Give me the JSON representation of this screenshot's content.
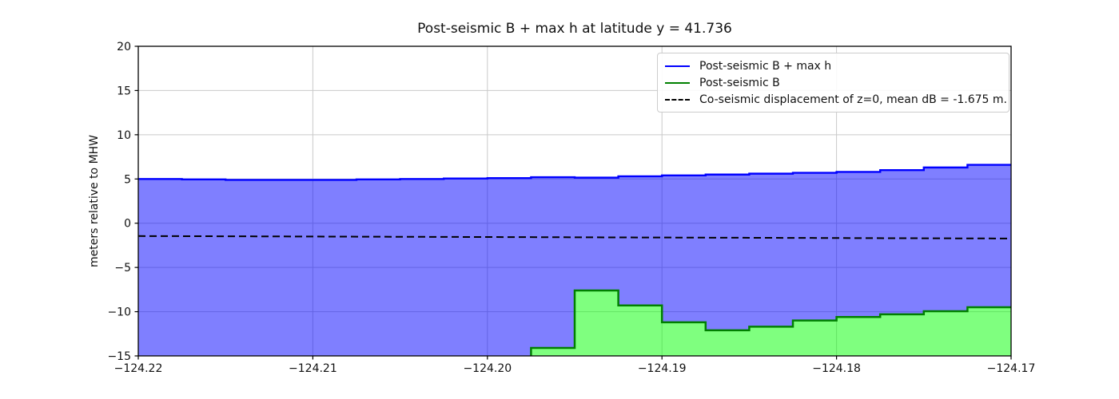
{
  "figure": {
    "background": "#ffffff"
  },
  "chart_data": {
    "type": "area",
    "title": "Post-seismic B + max h at latitude y = 41.736",
    "xlabel": "",
    "ylabel": "meters relative to MHW",
    "xlim": [
      -124.22,
      -124.17
    ],
    "ylim": [
      -15,
      20
    ],
    "x_ticks": {
      "values": [
        -124.22,
        -124.21,
        -124.2,
        -124.19,
        -124.18,
        -124.17
      ],
      "labels": [
        "−124.22",
        "−124.21",
        "−124.20",
        "−124.19",
        "−124.18",
        "−124.17"
      ]
    },
    "y_ticks": {
      "values": [
        20,
        15,
        10,
        5,
        0,
        -5,
        -10,
        -15
      ],
      "labels": [
        "20",
        "15",
        "10",
        "5",
        "0",
        "−5",
        "−10",
        "−15"
      ]
    },
    "grid": {
      "show": true,
      "color": "#c9c9c9"
    },
    "axis_color": "#000000",
    "legend_position": "upper right",
    "series": [
      {
        "name": "Post-seismic B + max h",
        "type": "step-area",
        "color": "#0000ff",
        "fill": "#0000ff",
        "fill_opacity": 0.5,
        "line_style": "solid",
        "x_start": -124.22,
        "step": 0.0025,
        "values": [
          5.0,
          4.95,
          4.9,
          4.9,
          4.9,
          4.95,
          5.0,
          5.05,
          5.1,
          5.2,
          5.15,
          5.3,
          5.4,
          5.5,
          5.6,
          5.7,
          5.8,
          6.0,
          6.3,
          6.6
        ]
      },
      {
        "name": "Post-seismic B",
        "type": "step-area",
        "color": "#008000",
        "fill": "#00ff00",
        "fill_opacity": 0.5,
        "line_style": "solid",
        "x_start": -124.1975,
        "step": 0.0025,
        "values": [
          -14.1,
          -7.6,
          -9.3,
          -11.2,
          -12.1,
          -11.7,
          -11.0,
          -10.6,
          -10.3,
          -9.95,
          -9.5
        ]
      },
      {
        "name": "Co-seismic displacement of z=0, mean dB = -1.675 m.",
        "type": "line",
        "color": "#000000",
        "line_style": "dashed",
        "x": [
          -124.22,
          -124.17
        ],
        "values": [
          -1.45,
          -1.73
        ]
      }
    ]
  }
}
